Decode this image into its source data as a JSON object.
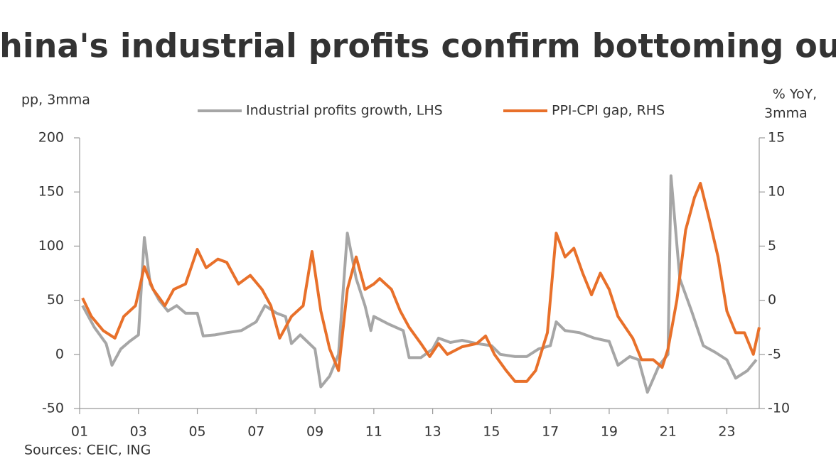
{
  "chart_data": {
    "type": "line",
    "title": "China's industrial profits confirm bottoming out",
    "y_label": "pp, 3mma",
    "y2_label": [
      "% YoY,",
      "3mma"
    ],
    "source": "Sources: CEIC, ING",
    "xlim": [
      1,
      24.1
    ],
    "xticks": [
      {
        "value": 1,
        "label": "01"
      },
      {
        "value": 3,
        "label": "03"
      },
      {
        "value": 5,
        "label": "05"
      },
      {
        "value": 7,
        "label": "07"
      },
      {
        "value": 9,
        "label": "09"
      },
      {
        "value": 11,
        "label": "11"
      },
      {
        "value": 13,
        "label": "13"
      },
      {
        "value": 15,
        "label": "15"
      },
      {
        "value": 17,
        "label": "17"
      },
      {
        "value": 19,
        "label": "19"
      },
      {
        "value": 21,
        "label": "21"
      },
      {
        "value": 23,
        "label": "23"
      }
    ],
    "ylim": [
      -50,
      200
    ],
    "yticks": [
      -50,
      0,
      50,
      100,
      150,
      200
    ],
    "y2lim": [
      -10,
      15
    ],
    "y2ticks": [
      -10,
      -5,
      0,
      5,
      10,
      15
    ],
    "series": [
      {
        "name": "Industrial profits growth, LHS",
        "color": "#a6a6a6",
        "x": [
          1.1,
          1.5,
          1.9,
          2.1,
          2.4,
          2.7,
          3.0,
          3.2,
          3.4,
          3.7,
          4.0,
          4.3,
          4.6,
          5.0,
          5.2,
          5.6,
          6.0,
          6.5,
          7.0,
          7.3,
          7.7,
          8.0,
          8.2,
          8.5,
          9.0,
          9.2,
          9.5,
          9.8,
          10.1,
          10.4,
          10.7,
          10.9,
          11.0,
          11.5,
          12.0,
          12.2,
          12.6,
          13.0,
          13.2,
          13.6,
          14.0,
          14.5,
          15.0,
          15.3,
          15.8,
          16.2,
          16.6,
          17.0,
          17.2,
          17.5,
          18.0,
          18.5,
          19.0,
          19.3,
          19.7,
          20.0,
          20.3,
          20.7,
          21.0,
          21.1,
          21.4,
          21.8,
          22.2,
          22.6,
          23.0,
          23.3,
          23.7,
          24.0
        ],
        "values": [
          45,
          25,
          10,
          -10,
          5,
          12,
          18,
          108,
          65,
          50,
          40,
          45,
          38,
          38,
          17,
          18,
          20,
          22,
          30,
          45,
          38,
          35,
          10,
          18,
          5,
          -30,
          -20,
          0,
          112,
          70,
          45,
          22,
          35,
          28,
          22,
          -3,
          -3,
          5,
          15,
          11,
          13,
          10,
          8,
          0,
          -2,
          -2,
          5,
          8,
          30,
          22,
          20,
          15,
          12,
          -10,
          -2,
          -5,
          -35,
          -10,
          0,
          165,
          70,
          40,
          8,
          2,
          -5,
          -22,
          -15,
          -5
        ]
      },
      {
        "name": "PPI-CPI gap, RHS",
        "color": "#e8702a",
        "axis": "y2",
        "x": [
          1.1,
          1.4,
          1.8,
          2.2,
          2.5,
          2.9,
          3.2,
          3.5,
          3.9,
          4.2,
          4.6,
          5.0,
          5.3,
          5.7,
          6.0,
          6.4,
          6.8,
          7.2,
          7.5,
          7.8,
          8.2,
          8.6,
          8.9,
          9.2,
          9.5,
          9.8,
          10.1,
          10.4,
          10.7,
          11.0,
          11.2,
          11.6,
          11.9,
          12.2,
          12.6,
          12.9,
          13.2,
          13.5,
          14.0,
          14.5,
          14.8,
          15.1,
          15.5,
          15.8,
          16.2,
          16.5,
          16.9,
          17.2,
          17.5,
          17.8,
          18.1,
          18.4,
          18.7,
          19.0,
          19.3,
          19.8,
          20.1,
          20.5,
          20.8,
          21.0,
          21.3,
          21.6,
          21.9,
          22.1,
          22.4,
          22.7,
          23.0,
          23.3,
          23.6,
          23.9,
          24.1
        ],
        "values": [
          0.2,
          -1.5,
          -2.8,
          -3.5,
          -1.5,
          -0.5,
          3.1,
          1,
          -0.5,
          1,
          1.5,
          4.7,
          3,
          3.8,
          3.5,
          1.5,
          2.3,
          1,
          -0.5,
          -3.5,
          -1.5,
          -0.5,
          4.5,
          -1,
          -4.5,
          -6.5,
          1,
          4,
          1,
          1.5,
          2,
          1,
          -1,
          -2.5,
          -4,
          -5.2,
          -4,
          -5,
          -4.3,
          -4,
          -3.3,
          -5,
          -6.5,
          -7.5,
          -7.5,
          -6.5,
          -3,
          6.2,
          4,
          4.8,
          2.5,
          0.5,
          2.5,
          1,
          -1.5,
          -3.5,
          -5.5,
          -5.5,
          -6.2,
          -4.5,
          0,
          6.5,
          9.5,
          10.8,
          7.5,
          4,
          -1,
          -3,
          -3,
          -5,
          -2.5
        ]
      }
    ]
  }
}
